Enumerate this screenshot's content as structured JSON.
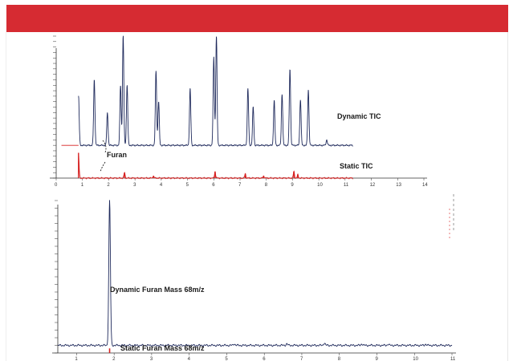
{
  "colors": {
    "header": "#d62b32",
    "dynamic": "#1f2a5c",
    "static": "#d62020",
    "axis": "#333333"
  },
  "chart_data": [
    {
      "type": "line",
      "x_ticks": [
        "0",
        "1",
        "2",
        "3",
        "4",
        "5",
        "6",
        "7",
        "8",
        "9",
        "10",
        "11",
        "12",
        "13",
        "14"
      ],
      "xlim": [
        0,
        14
      ],
      "series": [
        {
          "name": "Dynamic TIC",
          "baseline": 30,
          "peaks": [
            [
              0.85,
              45
            ],
            [
              1.45,
              60
            ],
            [
              1.95,
              30
            ],
            [
              2.45,
              55
            ],
            [
              2.55,
              100
            ],
            [
              2.7,
              55
            ],
            [
              3.8,
              68
            ],
            [
              3.9,
              40
            ],
            [
              5.1,
              52
            ],
            [
              6.0,
              81
            ],
            [
              6.1,
              100
            ],
            [
              7.3,
              52
            ],
            [
              7.5,
              35
            ],
            [
              8.3,
              41
            ],
            [
              8.6,
              47
            ],
            [
              8.9,
              70
            ],
            [
              9.3,
              42
            ],
            [
              9.6,
              51
            ],
            [
              10.3,
              5
            ]
          ]
        },
        {
          "name": "Static TIC",
          "peaks": [
            [
              0.85,
              23
            ],
            [
              2.6,
              5
            ],
            [
              3.7,
              2
            ],
            [
              6.05,
              6
            ],
            [
              7.2,
              4
            ],
            [
              7.9,
              2
            ],
            [
              9.05,
              6
            ],
            [
              9.2,
              3
            ]
          ]
        }
      ],
      "annotations": [
        "Furan"
      ]
    },
    {
      "type": "line",
      "x_ticks": [
        "1",
        "2",
        "3",
        "4",
        "5",
        "6",
        "7",
        "8",
        "9",
        "10",
        "11"
      ],
      "xlim": [
        0.5,
        11
      ],
      "series": [
        {
          "name": "Dynamic Furan Mass 68m/z",
          "baseline": 5,
          "peaks": [
            [
              1.88,
              95
            ],
            [
              5.2,
              1
            ],
            [
              6.6,
              1
            ],
            [
              7.6,
              1.5
            ],
            [
              8.6,
              1
            ],
            [
              9.3,
              0.8
            ],
            [
              10.3,
              0.8
            ]
          ]
        },
        {
          "name": "Static Furan Mass 68m/z",
          "peaks": [
            [
              1.88,
              3
            ]
          ]
        }
      ]
    }
  ]
}
